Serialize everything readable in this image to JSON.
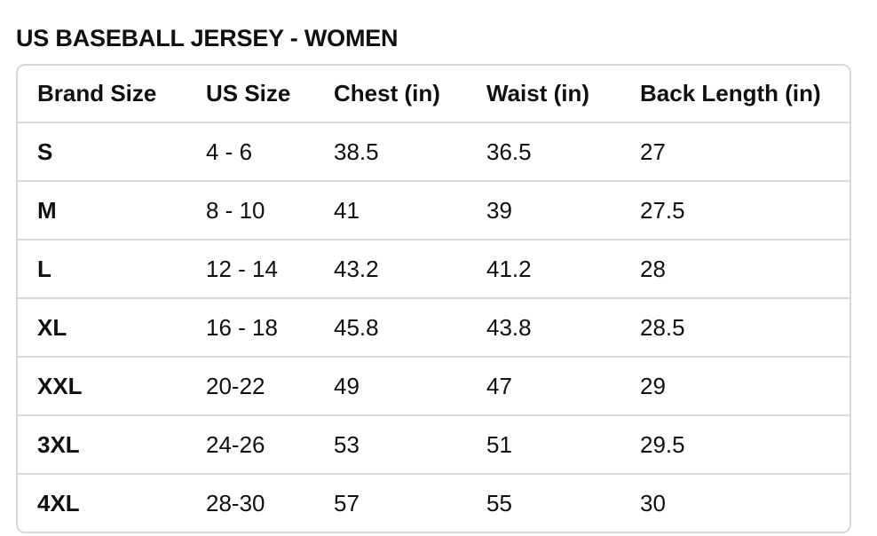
{
  "page": {
    "title": "US BASEBALL JERSEY - WOMEN"
  },
  "colors": {
    "text": "#0f1111",
    "border": "#d5d9d9",
    "background": "#ffffff"
  },
  "size_table": {
    "columns": [
      "Brand Size",
      "US Size",
      "Chest (in)",
      "Waist (in)",
      "Back Length (in)"
    ],
    "rows": [
      {
        "brand_size": "S",
        "us_size": "4 - 6",
        "chest_in": "38.5",
        "waist_in": "36.5",
        "back_length_in": "27"
      },
      {
        "brand_size": "M",
        "us_size": "8 - 10",
        "chest_in": "41",
        "waist_in": "39",
        "back_length_in": "27.5"
      },
      {
        "brand_size": "L",
        "us_size": "12 - 14",
        "chest_in": "43.2",
        "waist_in": "41.2",
        "back_length_in": "28"
      },
      {
        "brand_size": "XL",
        "us_size": "16 - 18",
        "chest_in": "45.8",
        "waist_in": "43.8",
        "back_length_in": "28.5"
      },
      {
        "brand_size": "XXL",
        "us_size": "20-22",
        "chest_in": "49",
        "waist_in": "47",
        "back_length_in": "29"
      },
      {
        "brand_size": "3XL",
        "us_size": "24-26",
        "chest_in": "53",
        "waist_in": "51",
        "back_length_in": "29.5"
      },
      {
        "brand_size": "4XL",
        "us_size": "28-30",
        "chest_in": "57",
        "waist_in": "55",
        "back_length_in": "30"
      }
    ]
  }
}
